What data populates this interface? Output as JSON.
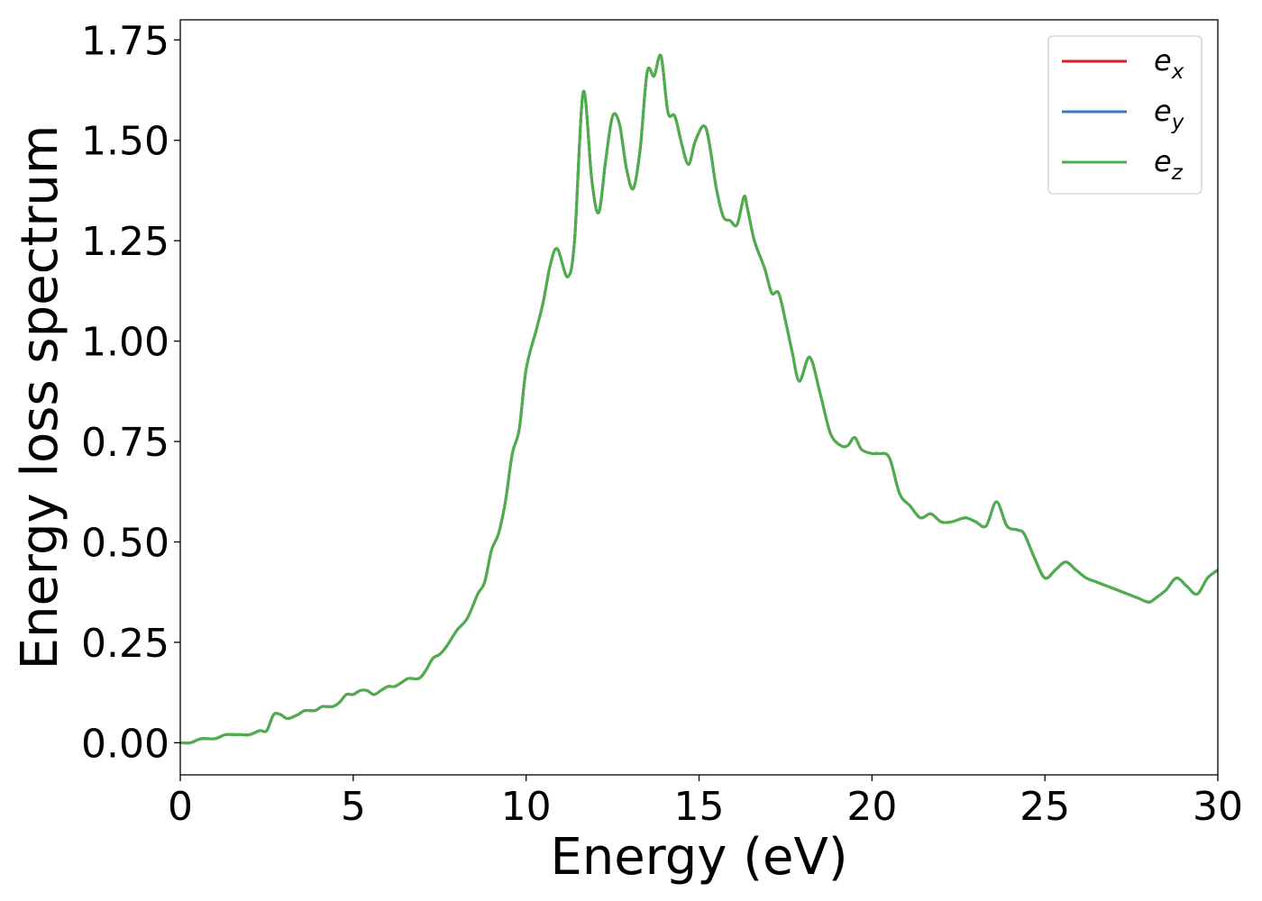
{
  "chart_data": {
    "type": "line",
    "title": "",
    "xlabel": "Energy (eV)",
    "ylabel": "Energy loss spectrum",
    "xlim": [
      0,
      30
    ],
    "ylim": [
      -0.08,
      1.8
    ],
    "x_ticks": [
      "0",
      "5",
      "10",
      "15",
      "20",
      "25",
      "30"
    ],
    "y_ticks": [
      "0.00",
      "0.25",
      "0.50",
      "0.75",
      "1.00",
      "1.25",
      "1.50",
      "1.75"
    ],
    "grid": false,
    "legend_position": "top-right",
    "legend": [
      {
        "base": "e",
        "sub": "x",
        "color": "#e41a1c"
      },
      {
        "base": "e",
        "sub": "y",
        "color": "#377eb8"
      },
      {
        "base": "e",
        "sub": "z",
        "color": "#4daf4a"
      }
    ],
    "series": [
      {
        "color": "#e41a1c",
        "x": [
          0,
          0.3,
          0.6,
          1.0,
          1.3,
          1.6,
          1.8,
          2.0,
          2.3,
          2.5,
          2.7,
          2.9,
          3.1,
          3.4,
          3.6,
          3.9,
          4.1,
          4.4,
          4.6,
          4.8,
          5.0,
          5.2,
          5.4,
          5.6,
          5.8,
          6.0,
          6.2,
          6.4,
          6.6,
          6.9,
          7.1,
          7.3,
          7.5,
          7.7,
          8.0,
          8.3,
          8.6,
          8.8,
          9.0,
          9.2,
          9.4,
          9.6,
          9.8,
          10.0,
          10.3,
          10.5,
          10.7,
          10.9,
          11.2,
          11.4,
          11.65,
          11.9,
          12.1,
          12.3,
          12.5,
          12.7,
          12.9,
          13.1,
          13.3,
          13.5,
          13.7,
          13.9,
          14.1,
          14.3,
          14.5,
          14.7,
          14.9,
          15.2,
          15.5,
          15.7,
          15.9,
          16.1,
          16.3,
          16.4,
          16.6,
          16.9,
          17.1,
          17.3,
          17.5,
          17.7,
          17.9,
          18.2,
          18.5,
          18.8,
          19.1,
          19.3,
          19.5,
          19.7,
          20.0,
          20.2,
          20.5,
          20.8,
          21.1,
          21.4,
          21.7,
          22.0,
          22.3,
          22.7,
          23.0,
          23.3,
          23.6,
          23.9,
          24.2,
          24.4,
          24.7,
          25.0,
          25.3,
          25.6,
          25.9,
          26.2,
          26.5,
          26.8,
          27.1,
          27.4,
          27.7,
          28.0,
          28.2,
          28.5,
          28.8,
          29.1,
          29.4,
          29.7,
          30.0
        ],
        "y": [
          0.0,
          0.0,
          0.01,
          0.01,
          0.02,
          0.02,
          0.02,
          0.02,
          0.03,
          0.03,
          0.07,
          0.07,
          0.06,
          0.07,
          0.08,
          0.08,
          0.09,
          0.09,
          0.1,
          0.12,
          0.12,
          0.13,
          0.13,
          0.12,
          0.13,
          0.14,
          0.14,
          0.15,
          0.16,
          0.16,
          0.18,
          0.21,
          0.22,
          0.24,
          0.28,
          0.31,
          0.37,
          0.4,
          0.48,
          0.52,
          0.6,
          0.72,
          0.78,
          0.93,
          1.03,
          1.1,
          1.19,
          1.23,
          1.16,
          1.25,
          1.62,
          1.4,
          1.32,
          1.45,
          1.56,
          1.54,
          1.43,
          1.38,
          1.48,
          1.67,
          1.66,
          1.71,
          1.57,
          1.56,
          1.49,
          1.44,
          1.5,
          1.53,
          1.38,
          1.31,
          1.3,
          1.29,
          1.36,
          1.33,
          1.25,
          1.18,
          1.12,
          1.12,
          1.05,
          0.97,
          0.9,
          0.96,
          0.87,
          0.77,
          0.74,
          0.74,
          0.76,
          0.73,
          0.72,
          0.72,
          0.71,
          0.62,
          0.59,
          0.56,
          0.57,
          0.55,
          0.55,
          0.56,
          0.55,
          0.54,
          0.6,
          0.54,
          0.53,
          0.52,
          0.46,
          0.41,
          0.43,
          0.45,
          0.43,
          0.41,
          0.4,
          0.39,
          0.38,
          0.37,
          0.36,
          0.35,
          0.36,
          0.38,
          0.41,
          0.39,
          0.37,
          0.41,
          0.43
        ]
      },
      {
        "color": "#377eb8",
        "x": [
          0,
          0.3,
          0.6,
          1.0,
          1.3,
          1.6,
          1.8,
          2.0,
          2.3,
          2.5,
          2.7,
          2.9,
          3.1,
          3.4,
          3.6,
          3.9,
          4.1,
          4.4,
          4.6,
          4.8,
          5.0,
          5.2,
          5.4,
          5.6,
          5.8,
          6.0,
          6.2,
          6.4,
          6.6,
          6.9,
          7.1,
          7.3,
          7.5,
          7.7,
          8.0,
          8.3,
          8.6,
          8.8,
          9.0,
          9.2,
          9.4,
          9.6,
          9.8,
          10.0,
          10.3,
          10.5,
          10.7,
          10.9,
          11.2,
          11.4,
          11.65,
          11.9,
          12.1,
          12.3,
          12.5,
          12.7,
          12.9,
          13.1,
          13.3,
          13.5,
          13.7,
          13.9,
          14.1,
          14.3,
          14.5,
          14.7,
          14.9,
          15.2,
          15.5,
          15.7,
          15.9,
          16.1,
          16.3,
          16.4,
          16.6,
          16.9,
          17.1,
          17.3,
          17.5,
          17.7,
          17.9,
          18.2,
          18.5,
          18.8,
          19.1,
          19.3,
          19.5,
          19.7,
          20.0,
          20.2,
          20.5,
          20.8,
          21.1,
          21.4,
          21.7,
          22.0,
          22.3,
          22.7,
          23.0,
          23.3,
          23.6,
          23.9,
          24.2,
          24.4,
          24.7,
          25.0,
          25.3,
          25.6,
          25.9,
          26.2,
          26.5,
          26.8,
          27.1,
          27.4,
          27.7,
          28.0,
          28.2,
          28.5,
          28.8,
          29.1,
          29.4,
          29.7,
          30.0
        ],
        "y": [
          0.0,
          0.0,
          0.01,
          0.01,
          0.02,
          0.02,
          0.02,
          0.02,
          0.03,
          0.03,
          0.07,
          0.07,
          0.06,
          0.07,
          0.08,
          0.08,
          0.09,
          0.09,
          0.1,
          0.12,
          0.12,
          0.13,
          0.13,
          0.12,
          0.13,
          0.14,
          0.14,
          0.15,
          0.16,
          0.16,
          0.18,
          0.21,
          0.22,
          0.24,
          0.28,
          0.31,
          0.37,
          0.4,
          0.48,
          0.52,
          0.6,
          0.72,
          0.78,
          0.93,
          1.03,
          1.1,
          1.19,
          1.23,
          1.16,
          1.25,
          1.62,
          1.4,
          1.32,
          1.45,
          1.56,
          1.54,
          1.43,
          1.38,
          1.48,
          1.67,
          1.66,
          1.71,
          1.57,
          1.56,
          1.49,
          1.44,
          1.5,
          1.53,
          1.38,
          1.31,
          1.3,
          1.29,
          1.36,
          1.33,
          1.25,
          1.18,
          1.12,
          1.12,
          1.05,
          0.97,
          0.9,
          0.96,
          0.87,
          0.77,
          0.74,
          0.74,
          0.76,
          0.73,
          0.72,
          0.72,
          0.71,
          0.62,
          0.59,
          0.56,
          0.57,
          0.55,
          0.55,
          0.56,
          0.55,
          0.54,
          0.6,
          0.54,
          0.53,
          0.52,
          0.46,
          0.41,
          0.43,
          0.45,
          0.43,
          0.41,
          0.4,
          0.39,
          0.38,
          0.37,
          0.36,
          0.35,
          0.36,
          0.38,
          0.41,
          0.39,
          0.37,
          0.41,
          0.43
        ]
      },
      {
        "color": "#4daf4a",
        "x": [
          0,
          0.3,
          0.6,
          1.0,
          1.3,
          1.6,
          1.8,
          2.0,
          2.3,
          2.5,
          2.7,
          2.9,
          3.1,
          3.4,
          3.6,
          3.9,
          4.1,
          4.4,
          4.6,
          4.8,
          5.0,
          5.2,
          5.4,
          5.6,
          5.8,
          6.0,
          6.2,
          6.4,
          6.6,
          6.9,
          7.1,
          7.3,
          7.5,
          7.7,
          8.0,
          8.3,
          8.6,
          8.8,
          9.0,
          9.2,
          9.4,
          9.6,
          9.8,
          10.0,
          10.3,
          10.5,
          10.7,
          10.9,
          11.2,
          11.4,
          11.65,
          11.9,
          12.1,
          12.3,
          12.5,
          12.7,
          12.9,
          13.1,
          13.3,
          13.5,
          13.7,
          13.9,
          14.1,
          14.3,
          14.5,
          14.7,
          14.9,
          15.2,
          15.5,
          15.7,
          15.9,
          16.1,
          16.3,
          16.4,
          16.6,
          16.9,
          17.1,
          17.3,
          17.5,
          17.7,
          17.9,
          18.2,
          18.5,
          18.8,
          19.1,
          19.3,
          19.5,
          19.7,
          20.0,
          20.2,
          20.5,
          20.8,
          21.1,
          21.4,
          21.7,
          22.0,
          22.3,
          22.7,
          23.0,
          23.3,
          23.6,
          23.9,
          24.2,
          24.4,
          24.7,
          25.0,
          25.3,
          25.6,
          25.9,
          26.2,
          26.5,
          26.8,
          27.1,
          27.4,
          27.7,
          28.0,
          28.2,
          28.5,
          28.8,
          29.1,
          29.4,
          29.7,
          30.0
        ],
        "y": [
          0.0,
          0.0,
          0.01,
          0.01,
          0.02,
          0.02,
          0.02,
          0.02,
          0.03,
          0.03,
          0.07,
          0.07,
          0.06,
          0.07,
          0.08,
          0.08,
          0.09,
          0.09,
          0.1,
          0.12,
          0.12,
          0.13,
          0.13,
          0.12,
          0.13,
          0.14,
          0.14,
          0.15,
          0.16,
          0.16,
          0.18,
          0.21,
          0.22,
          0.24,
          0.28,
          0.31,
          0.37,
          0.4,
          0.48,
          0.52,
          0.6,
          0.72,
          0.78,
          0.93,
          1.03,
          1.1,
          1.19,
          1.23,
          1.16,
          1.25,
          1.62,
          1.4,
          1.32,
          1.45,
          1.56,
          1.54,
          1.43,
          1.38,
          1.48,
          1.67,
          1.66,
          1.71,
          1.57,
          1.56,
          1.49,
          1.44,
          1.5,
          1.53,
          1.38,
          1.31,
          1.3,
          1.29,
          1.36,
          1.33,
          1.25,
          1.18,
          1.12,
          1.12,
          1.05,
          0.97,
          0.9,
          0.96,
          0.87,
          0.77,
          0.74,
          0.74,
          0.76,
          0.73,
          0.72,
          0.72,
          0.71,
          0.62,
          0.59,
          0.56,
          0.57,
          0.55,
          0.55,
          0.56,
          0.55,
          0.54,
          0.6,
          0.54,
          0.53,
          0.52,
          0.46,
          0.41,
          0.43,
          0.45,
          0.43,
          0.41,
          0.4,
          0.39,
          0.38,
          0.37,
          0.36,
          0.35,
          0.36,
          0.38,
          0.41,
          0.39,
          0.37,
          0.41,
          0.43
        ]
      }
    ]
  }
}
